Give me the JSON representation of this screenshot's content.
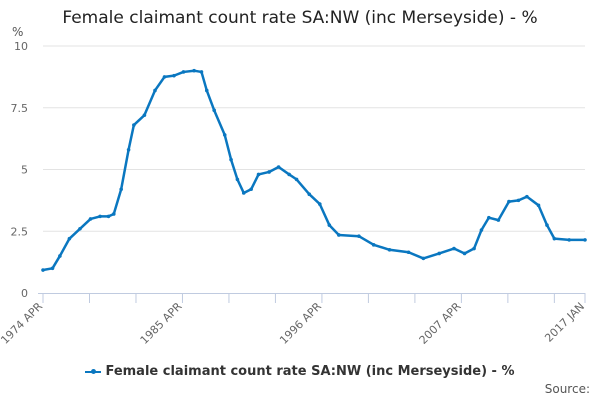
{
  "chart_data": {
    "type": "line",
    "title": "Female claimant count rate SA:NW (inc Merseyside) - %",
    "ylabel": "%",
    "xlabel": "",
    "ylim": [
      0,
      10
    ],
    "yticks": [
      "0",
      "2.5",
      "5",
      "7.5",
      "10"
    ],
    "xlim": [
      "1974-04",
      "2017-01"
    ],
    "xtick_labels": [
      "1974 APR",
      "1985 APR",
      "1996 APR",
      "2007 APR",
      "2017 JAN"
    ],
    "grid": true,
    "legend_position": "bottom",
    "color": "#0a77c0",
    "series": [
      {
        "name": "Female claimant count rate SA:NW (inc Merseyside) - %",
        "points": [
          [
            "1974-04",
            0.93
          ],
          [
            "1975-01",
            1.0
          ],
          [
            "1975-08",
            1.5
          ],
          [
            "1976-05",
            2.2
          ],
          [
            "1977-03",
            2.6
          ],
          [
            "1978-01",
            3.0
          ],
          [
            "1978-10",
            3.1
          ],
          [
            "1979-06",
            3.1
          ],
          [
            "1979-11",
            3.2
          ],
          [
            "1980-06",
            4.2
          ],
          [
            "1981-01",
            5.8
          ],
          [
            "1981-06",
            6.8
          ],
          [
            "1982-04",
            7.2
          ],
          [
            "1983-02",
            8.2
          ],
          [
            "1983-11",
            8.75
          ],
          [
            "1984-08",
            8.8
          ],
          [
            "1985-05",
            8.95
          ],
          [
            "1986-03",
            9.0
          ],
          [
            "1986-10",
            8.95
          ],
          [
            "1987-03",
            8.2
          ],
          [
            "1987-10",
            7.4
          ],
          [
            "1988-08",
            6.4
          ],
          [
            "1989-02",
            5.4
          ],
          [
            "1989-08",
            4.6
          ],
          [
            "1990-02",
            4.05
          ],
          [
            "1990-09",
            4.2
          ],
          [
            "1991-04",
            4.8
          ],
          [
            "1992-02",
            4.9
          ],
          [
            "1992-11",
            5.1
          ],
          [
            "1993-09",
            4.8
          ],
          [
            "1994-04",
            4.6
          ],
          [
            "1995-04",
            4.0
          ],
          [
            "1996-02",
            3.6
          ],
          [
            "1996-11",
            2.75
          ],
          [
            "1997-08",
            2.35
          ],
          [
            "1999-03",
            2.3
          ],
          [
            "2000-05",
            1.95
          ],
          [
            "2001-08",
            1.75
          ],
          [
            "2003-02",
            1.65
          ],
          [
            "2004-04",
            1.4
          ],
          [
            "2005-07",
            1.6
          ],
          [
            "2006-09",
            1.8
          ],
          [
            "2007-07",
            1.6
          ],
          [
            "2008-04",
            1.8
          ],
          [
            "2008-11",
            2.55
          ],
          [
            "2009-06",
            3.05
          ],
          [
            "2010-03",
            2.95
          ],
          [
            "2011-01",
            3.7
          ],
          [
            "2011-10",
            3.75
          ],
          [
            "2012-06",
            3.9
          ],
          [
            "2013-05",
            3.55
          ],
          [
            "2014-01",
            2.75
          ],
          [
            "2014-08",
            2.2
          ],
          [
            "2015-10",
            2.15
          ],
          [
            "2017-01",
            2.15
          ]
        ]
      }
    ],
    "source_label": "Source:"
  }
}
